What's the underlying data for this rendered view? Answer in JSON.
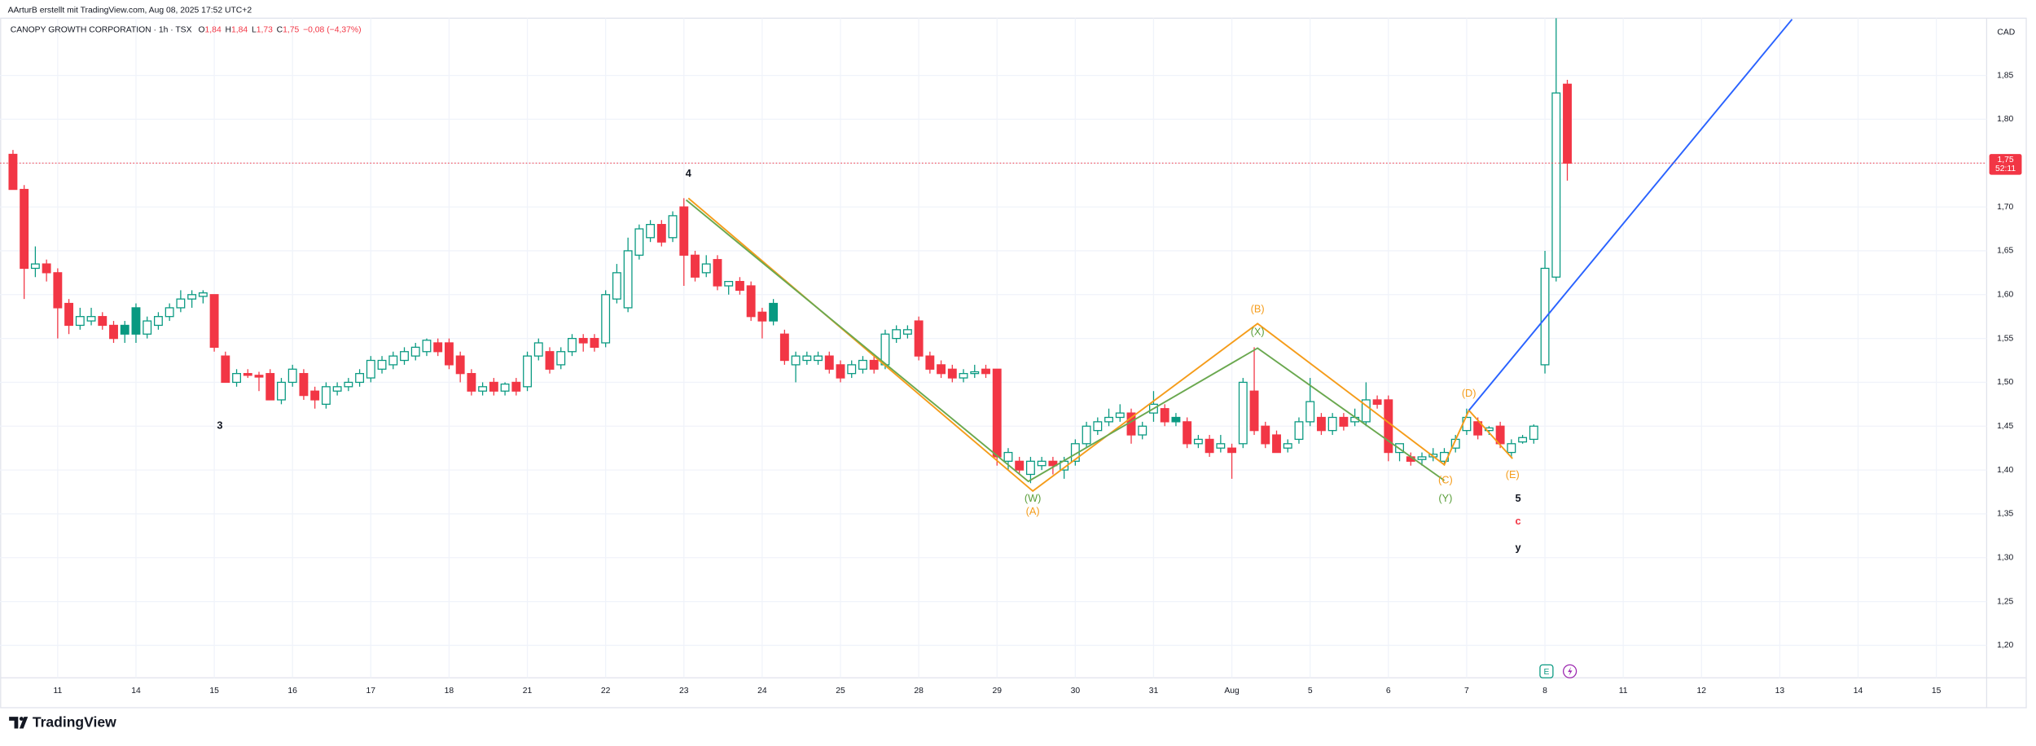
{
  "header": {
    "attribution": "AArturB erstellt mit TradingView.com, Aug 08, 2025 17:52 UTC+2",
    "brand": "TradingView"
  },
  "events": {
    "earnings": "E"
  },
  "chart_data": {
    "type": "candlestick",
    "title": "CANOPY GROWTH CORPORATION · 1h · TSX",
    "ohlc_legend": [
      {
        "label": "O",
        "value": "1,84"
      },
      {
        "label": "H",
        "value": "1,84"
      },
      {
        "label": "L",
        "value": "1,73"
      },
      {
        "label": "C",
        "value": "1,75"
      }
    ],
    "change": "−0,08 (−4,37%)",
    "currency": "CAD",
    "up_color": "#089981",
    "down_color": "#f23645",
    "open": [
      1.76,
      1.72,
      1.63,
      1.635,
      1.625,
      1.59,
      1.565,
      1.57,
      1.575,
      1.565,
      1.565,
      1.585,
      1.555,
      1.565,
      1.575,
      1.585,
      1.595,
      1.598,
      1.6,
      1.53,
      1.5,
      1.51,
      1.508,
      1.51,
      1.48,
      1.5,
      1.51,
      1.49,
      1.475,
      1.49,
      1.495,
      1.5,
      1.505,
      1.515,
      1.52,
      1.525,
      1.53,
      1.535,
      1.545,
      1.545,
      1.53,
      1.51,
      1.49,
      1.5,
      1.49,
      1.5,
      1.495,
      1.53,
      1.535,
      1.52,
      1.535,
      1.55,
      1.55,
      1.545,
      1.595,
      1.585,
      1.645,
      1.665,
      1.68,
      1.665,
      1.7,
      1.645,
      1.625,
      1.64,
      1.61,
      1.615,
      1.61,
      1.58,
      1.59,
      1.555,
      1.52,
      1.525,
      1.525,
      1.53,
      1.52,
      1.51,
      1.515,
      1.525,
      1.52,
      1.55,
      1.555,
      1.57,
      1.53,
      1.52,
      1.515,
      1.505,
      1.51,
      1.515,
      1.515,
      1.41,
      1.41,
      1.395,
      1.405,
      1.41,
      1.4,
      1.41,
      1.43,
      1.445,
      1.455,
      1.46,
      1.465,
      1.44,
      1.465,
      1.47,
      1.46,
      1.455,
      1.43,
      1.435,
      1.425,
      1.425,
      1.43,
      1.49,
      1.45,
      1.44,
      1.425,
      1.435,
      1.455,
      1.46,
      1.445,
      1.46,
      1.455,
      1.455,
      1.48,
      1.48,
      1.42,
      1.415,
      1.412,
      1.415,
      1.41,
      1.425,
      1.445,
      1.455,
      1.445,
      1.45,
      1.42,
      1.432,
      1.435,
      1.52,
      1.62,
      1.84
    ],
    "high": [
      1.765,
      1.725,
      1.655,
      1.64,
      1.63,
      1.595,
      1.585,
      1.585,
      1.58,
      1.57,
      1.57,
      1.59,
      1.575,
      1.58,
      1.59,
      1.605,
      1.605,
      1.605,
      1.6,
      1.535,
      1.515,
      1.515,
      1.512,
      1.515,
      1.505,
      1.52,
      1.515,
      1.495,
      1.5,
      1.5,
      1.505,
      1.515,
      1.53,
      1.53,
      1.535,
      1.54,
      1.545,
      1.55,
      1.55,
      1.55,
      1.535,
      1.515,
      1.5,
      1.505,
      1.5,
      1.505,
      1.535,
      1.55,
      1.54,
      1.54,
      1.555,
      1.555,
      1.555,
      1.605,
      1.635,
      1.665,
      1.68,
      1.685,
      1.685,
      1.695,
      1.71,
      1.65,
      1.645,
      1.645,
      1.615,
      1.62,
      1.615,
      1.585,
      1.595,
      1.56,
      1.535,
      1.535,
      1.535,
      1.535,
      1.525,
      1.525,
      1.53,
      1.53,
      1.56,
      1.565,
      1.565,
      1.575,
      1.535,
      1.525,
      1.52,
      1.515,
      1.52,
      1.52,
      1.515,
      1.425,
      1.415,
      1.415,
      1.415,
      1.415,
      1.415,
      1.435,
      1.455,
      1.46,
      1.47,
      1.475,
      1.47,
      1.455,
      1.49,
      1.475,
      1.465,
      1.46,
      1.44,
      1.44,
      1.44,
      1.43,
      1.505,
      1.54,
      1.455,
      1.445,
      1.435,
      1.46,
      1.505,
      1.465,
      1.465,
      1.465,
      1.47,
      1.5,
      1.485,
      1.485,
      1.43,
      1.42,
      1.42,
      1.425,
      1.425,
      1.44,
      1.47,
      1.46,
      1.45,
      1.455,
      1.435,
      1.44,
      1.452,
      1.65,
      1.92,
      1.845
    ],
    "low": [
      1.72,
      1.595,
      1.62,
      1.615,
      1.55,
      1.555,
      1.56,
      1.565,
      1.56,
      1.545,
      1.545,
      1.545,
      1.55,
      1.56,
      1.57,
      1.58,
      1.585,
      1.59,
      1.535,
      1.5,
      1.495,
      1.505,
      1.49,
      1.48,
      1.475,
      1.495,
      1.48,
      1.47,
      1.47,
      1.485,
      1.49,
      1.495,
      1.5,
      1.51,
      1.515,
      1.52,
      1.525,
      1.53,
      1.53,
      1.515,
      1.5,
      1.485,
      1.485,
      1.485,
      1.485,
      1.485,
      1.49,
      1.525,
      1.51,
      1.515,
      1.53,
      1.535,
      1.535,
      1.54,
      1.59,
      1.58,
      1.64,
      1.66,
      1.655,
      1.66,
      1.61,
      1.615,
      1.62,
      1.605,
      1.6,
      1.6,
      1.57,
      1.55,
      1.565,
      1.52,
      1.5,
      1.52,
      1.52,
      1.51,
      1.5,
      1.505,
      1.51,
      1.51,
      1.515,
      1.545,
      1.55,
      1.525,
      1.51,
      1.505,
      1.5,
      1.5,
      1.505,
      1.505,
      1.405,
      1.4,
      1.395,
      1.385,
      1.4,
      1.395,
      1.39,
      1.405,
      1.425,
      1.44,
      1.45,
      1.455,
      1.43,
      1.435,
      1.455,
      1.45,
      1.45,
      1.425,
      1.425,
      1.415,
      1.42,
      1.39,
      1.425,
      1.44,
      1.425,
      1.42,
      1.42,
      1.43,
      1.45,
      1.44,
      1.44,
      1.445,
      1.45,
      1.45,
      1.47,
      1.41,
      1.41,
      1.405,
      1.405,
      1.41,
      1.405,
      1.42,
      1.44,
      1.435,
      1.44,
      1.425,
      1.415,
      1.43,
      1.43,
      1.51,
      1.615,
      1.73
    ],
    "close": [
      1.72,
      1.63,
      1.635,
      1.625,
      1.585,
      1.565,
      1.575,
      1.575,
      1.565,
      1.55,
      1.555,
      1.555,
      1.57,
      1.575,
      1.585,
      1.595,
      1.6,
      1.602,
      1.54,
      1.5,
      1.51,
      1.508,
      1.506,
      1.48,
      1.5,
      1.515,
      1.485,
      1.48,
      1.495,
      1.495,
      1.5,
      1.51,
      1.525,
      1.525,
      1.53,
      1.535,
      1.54,
      1.548,
      1.535,
      1.52,
      1.51,
      1.49,
      1.495,
      1.49,
      1.498,
      1.49,
      1.53,
      1.545,
      1.515,
      1.535,
      1.55,
      1.545,
      1.54,
      1.6,
      1.625,
      1.65,
      1.675,
      1.68,
      1.66,
      1.69,
      1.645,
      1.62,
      1.635,
      1.61,
      1.615,
      1.605,
      1.575,
      1.57,
      1.57,
      1.525,
      1.53,
      1.53,
      1.53,
      1.515,
      1.505,
      1.52,
      1.525,
      1.515,
      1.555,
      1.56,
      1.56,
      1.53,
      1.515,
      1.51,
      1.505,
      1.51,
      1.512,
      1.51,
      1.415,
      1.42,
      1.4,
      1.41,
      1.41,
      1.405,
      1.41,
      1.43,
      1.45,
      1.455,
      1.46,
      1.465,
      1.44,
      1.45,
      1.475,
      1.455,
      1.455,
      1.43,
      1.435,
      1.42,
      1.43,
      1.42,
      1.5,
      1.445,
      1.43,
      1.42,
      1.43,
      1.455,
      1.478,
      1.445,
      1.46,
      1.45,
      1.46,
      1.48,
      1.475,
      1.42,
      1.43,
      1.41,
      1.415,
      1.418,
      1.42,
      1.435,
      1.46,
      1.44,
      1.448,
      1.43,
      1.43,
      1.437,
      1.45,
      1.63,
      1.83,
      1.75
    ],
    "xlim": [
      -1.16,
      176.5
    ],
    "xticks": [
      {
        "value": 4,
        "label": "11"
      },
      {
        "value": 11,
        "label": "14"
      },
      {
        "value": 18,
        "label": "15"
      },
      {
        "value": 25,
        "label": "16"
      },
      {
        "value": 32,
        "label": "17"
      },
      {
        "value": 39,
        "label": "18"
      },
      {
        "value": 46,
        "label": "21"
      },
      {
        "value": 53,
        "label": "22"
      },
      {
        "value": 60,
        "label": "23"
      },
      {
        "value": 67,
        "label": "24"
      },
      {
        "value": 74,
        "label": "25"
      },
      {
        "value": 81,
        "label": "28"
      },
      {
        "value": 88,
        "label": "29"
      },
      {
        "value": 95,
        "label": "30"
      },
      {
        "value": 102,
        "label": "31"
      },
      {
        "value": 109,
        "label": "Aug"
      },
      {
        "value": 116,
        "label": "5"
      },
      {
        "value": 123,
        "label": "6"
      },
      {
        "value": 130,
        "label": "7"
      },
      {
        "value": 137,
        "label": "8"
      },
      {
        "value": 144,
        "label": "11"
      },
      {
        "value": 151,
        "label": "12"
      },
      {
        "value": 158,
        "label": "13"
      },
      {
        "value": 165,
        "label": "14"
      },
      {
        "value": 172,
        "label": "15"
      }
    ],
    "ylim": [
      1.163,
      1.936
    ],
    "yticks": [
      {
        "value": 1.2,
        "label": "1,20"
      },
      {
        "value": 1.25,
        "label": "1,25"
      },
      {
        "value": 1.3,
        "label": "1,30"
      },
      {
        "value": 1.35,
        "label": "1,35"
      },
      {
        "value": 1.4,
        "label": "1,40"
      },
      {
        "value": 1.45,
        "label": "1,45"
      },
      {
        "value": 1.5,
        "label": "1,50"
      },
      {
        "value": 1.55,
        "label": "1,55"
      },
      {
        "value": 1.6,
        "label": "1,60"
      },
      {
        "value": 1.65,
        "label": "1,65"
      },
      {
        "value": 1.7,
        "label": "1,70"
      },
      {
        "value": 1.75,
        "label": "1,75"
      },
      {
        "value": 1.8,
        "label": "1,80"
      },
      {
        "value": 1.85,
        "label": "1,85"
      }
    ],
    "grid": true,
    "last_price": {
      "value": 1.75,
      "label": "1,75",
      "countdown": "52:11",
      "color": "#f23645"
    },
    "drawings": [
      {
        "color": "#f59c1a",
        "x": [
          60.4,
          91.2,
          111.3,
          128,
          130.2,
          134.1
        ],
        "y": [
          1.71,
          1.376,
          1.567,
          1.406,
          1.468,
          1.413
        ]
      },
      {
        "color": "#6aa84f",
        "x": [
          60.2,
          90.8,
          111.3,
          128
        ],
        "y": [
          1.708,
          1.387,
          1.539,
          1.388
        ]
      },
      {
        "color": "#2962ff",
        "x": [
          130.2,
          159.1
        ],
        "y": [
          1.468,
          1.914
        ]
      }
    ],
    "annotations": [
      {
        "text": "4",
        "x": 60.4,
        "y": 1.7375,
        "color": "#131722"
      },
      {
        "text": "3",
        "x": 18.5,
        "y": 1.45,
        "color": "#131722"
      },
      {
        "text": "(W)",
        "x": 91.2,
        "y": 1.367,
        "color": "#5a9e3a"
      },
      {
        "text": "(A)",
        "x": 91.2,
        "y": 1.352,
        "color": "#f59c1a"
      },
      {
        "text": "(B)",
        "x": 111.3,
        "y": 1.583,
        "color": "#f59c1a"
      },
      {
        "text": "(X)",
        "x": 111.3,
        "y": 1.557,
        "color": "#5a9e3a"
      },
      {
        "text": "(C)",
        "x": 128.1,
        "y": 1.388,
        "color": "#f59c1a"
      },
      {
        "text": "(Y)",
        "x": 128.1,
        "y": 1.367,
        "color": "#5a9e3a"
      },
      {
        "text": "(D)",
        "x": 130.2,
        "y": 1.487,
        "color": "#f59c1a"
      },
      {
        "text": "(E)",
        "x": 134.1,
        "y": 1.394,
        "color": "#f59c1a"
      },
      {
        "text": "5",
        "x": 134.6,
        "y": 1.367,
        "color": "#131722"
      },
      {
        "text": "c",
        "x": 134.6,
        "y": 1.341,
        "color": "#f23645"
      },
      {
        "text": "y",
        "x": 134.6,
        "y": 1.311,
        "color": "#131722"
      }
    ]
  }
}
